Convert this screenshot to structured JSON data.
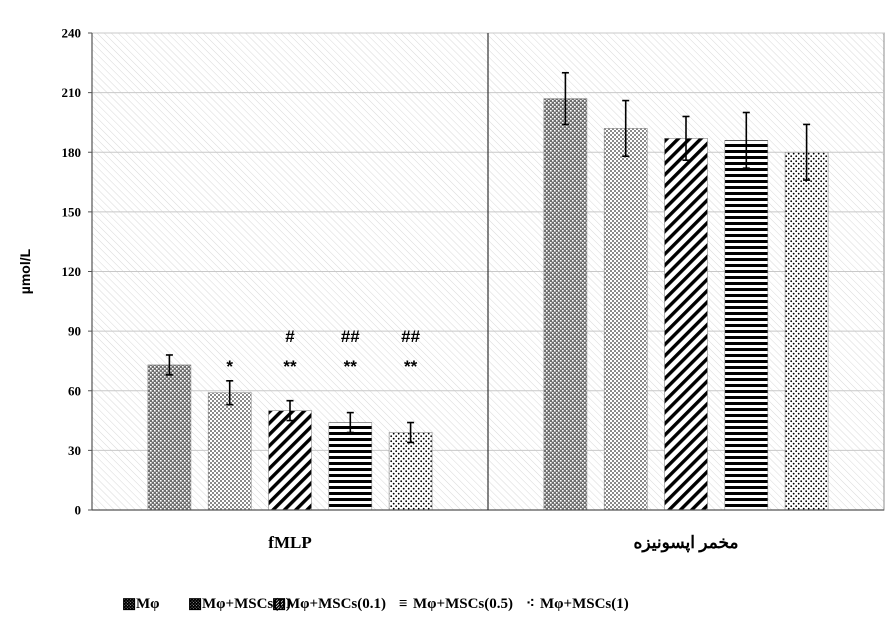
{
  "chart_data": {
    "type": "bar",
    "ylabel": "µmol/L",
    "ylim": [
      0,
      240
    ],
    "yticks": [
      0,
      30,
      60,
      90,
      120,
      150,
      180,
      210,
      240
    ],
    "grid": true,
    "legend_position": "bottom",
    "categories": [
      "fMLP",
      "مخمر اپسونیزه"
    ],
    "series": [
      {
        "name": "Mφ",
        "values": [
          73,
          207
        ],
        "errors": [
          5,
          13
        ],
        "pattern": "dense-dots",
        "legend_icon": "▩"
      },
      {
        "name": "Mφ+MSCs(0)",
        "values": [
          59,
          192
        ],
        "errors": [
          6,
          14
        ],
        "pattern": "checker",
        "legend_icon": "▩"
      },
      {
        "name": "Mφ+MSCs(0.1)",
        "values": [
          50,
          187
        ],
        "errors": [
          5,
          11
        ],
        "pattern": "diagonal",
        "legend_icon": "▨"
      },
      {
        "name": "Mφ+MSCs(0.5)",
        "values": [
          44,
          186
        ],
        "errors": [
          5,
          14
        ],
        "pattern": "horizontal",
        "legend_icon": "≡"
      },
      {
        "name": "Mφ+MSCs(1)",
        "values": [
          39,
          180
        ],
        "errors": [
          5,
          14
        ],
        "pattern": "sparse-dots",
        "legend_icon": "⁖"
      }
    ],
    "annotations": [
      {
        "category": 0,
        "series": 1,
        "lines": [
          "*"
        ]
      },
      {
        "category": 0,
        "series": 2,
        "lines": [
          "#",
          "**"
        ]
      },
      {
        "category": 0,
        "series": 3,
        "lines": [
          "##",
          "**"
        ]
      },
      {
        "category": 0,
        "series": 4,
        "lines": [
          "##",
          "**"
        ]
      }
    ]
  }
}
